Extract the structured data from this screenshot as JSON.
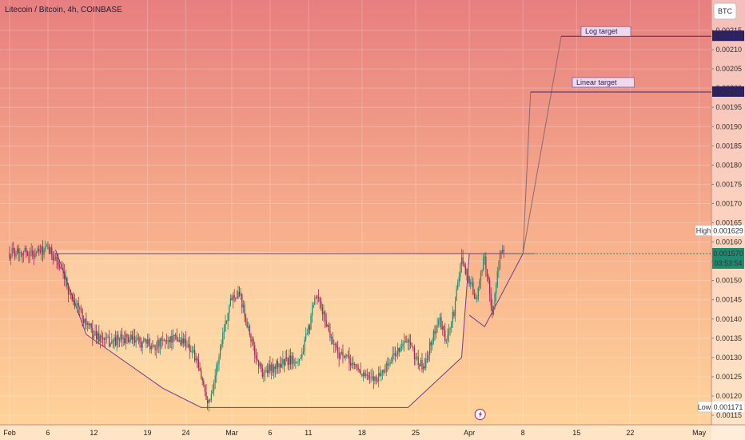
{
  "chart_data": {
    "type": "candlestick",
    "title": "Litecoin / Bitcoin, 4h, COINBASE",
    "currency": "BTC",
    "x_ticks": [
      "Feb",
      "6",
      "12",
      "19",
      "24",
      "Mar",
      "6",
      "11",
      "18",
      "25",
      "Apr",
      "8",
      "15",
      "22",
      "May"
    ],
    "y_ticks": [
      "0.00215",
      "0.00210",
      "0.00205",
      "0.00200",
      "0.00195",
      "0.00190",
      "0.00185",
      "0.00180",
      "0.00175",
      "0.00170",
      "0.00165",
      "0.00160",
      "0.00155",
      "0.00150",
      "0.00145",
      "0.00140",
      "0.00135",
      "0.00130",
      "0.00125",
      "0.00120",
      "0.00115"
    ],
    "y_range": [
      0.00115,
      0.00215
    ],
    "high_label": "High",
    "high_value": "0.001629",
    "low_label": "Low",
    "low_value": "0.001171",
    "current_price": "0.001570",
    "countdown": "03:53:54",
    "log_target": {
      "label": "Log target",
      "value": "0.002135"
    },
    "linear_target": {
      "label": "Linear target",
      "value": "0.001990"
    },
    "neckline": 0.00157,
    "price_path": [
      [
        "Feb 1",
        0.00157
      ],
      [
        "Feb 2",
        0.00158
      ],
      [
        "Feb 4",
        0.00157
      ],
      [
        "Feb 6",
        0.00158
      ],
      [
        "Feb 7",
        0.00156
      ],
      [
        "Feb 8",
        0.00151
      ],
      [
        "Feb 9",
        0.00146
      ],
      [
        "Feb 10",
        0.00143
      ],
      [
        "Feb 11",
        0.00139
      ],
      [
        "Feb 12",
        0.00136
      ],
      [
        "Feb 14",
        0.00134
      ],
      [
        "Feb 16",
        0.00135
      ],
      [
        "Feb 18",
        0.00134
      ],
      [
        "Feb 20",
        0.00133
      ],
      [
        "Feb 22",
        0.00135
      ],
      [
        "Feb 24",
        0.00134
      ],
      [
        "Feb 25",
        0.00131
      ],
      [
        "Feb 26",
        0.00125
      ],
      [
        "Feb 27",
        0.00118
      ],
      [
        "Feb 28",
        0.00127
      ],
      [
        "Feb 29",
        0.00138
      ],
      [
        "Mar 1",
        0.00146
      ],
      [
        "Mar 2",
        0.00147
      ],
      [
        "Mar 3",
        0.00139
      ],
      [
        "Mar 4",
        0.00131
      ],
      [
        "Mar 5",
        0.00126
      ],
      [
        "Mar 6",
        0.00127
      ],
      [
        "Mar 8",
        0.00129
      ],
      [
        "Mar 10",
        0.0013
      ],
      [
        "Mar 11",
        0.00137
      ],
      [
        "Mar 12",
        0.00146
      ],
      [
        "Mar 13",
        0.00141
      ],
      [
        "Mar 14",
        0.00135
      ],
      [
        "Mar 15",
        0.00131
      ],
      [
        "Mar 17",
        0.00128
      ],
      [
        "Mar 18",
        0.00126
      ],
      [
        "Mar 19",
        0.00124
      ],
      [
        "Mar 20",
        0.00125
      ],
      [
        "Mar 21",
        0.00127
      ],
      [
        "Mar 22",
        0.0013
      ],
      [
        "Mar 23",
        0.00133
      ],
      [
        "Mar 24",
        0.00134
      ],
      [
        "Mar 25",
        0.0013
      ],
      [
        "Mar 26",
        0.00127
      ],
      [
        "Mar 27",
        0.00134
      ],
      [
        "Mar 28",
        0.0014
      ],
      [
        "Mar 29",
        0.00134
      ],
      [
        "Mar 30",
        0.00142
      ],
      [
        "Mar 31",
        0.00156
      ],
      [
        "Apr 1",
        0.0015
      ],
      [
        "Apr 2",
        0.00145
      ],
      [
        "Apr 3",
        0.00157
      ],
      [
        "Apr 4",
        0.00141
      ],
      [
        "Apr 5",
        0.00157
      ]
    ],
    "cup_outline": [
      [
        "Feb 7",
        0.00158
      ],
      [
        "Feb 11",
        0.00136
      ],
      [
        "Feb 21",
        0.00122
      ],
      [
        "Feb 26",
        0.00117
      ],
      [
        "Mar 24",
        0.00117
      ],
      [
        "Mar 31",
        0.0013
      ],
      [
        "Apr 1",
        0.00157
      ]
    ],
    "handle_outline": [
      [
        "Apr 1",
        0.00141
      ],
      [
        "Apr 3",
        0.00138
      ],
      [
        "Apr 8",
        0.00157
      ]
    ],
    "projection": [
      [
        "Apr 8",
        0.00157
      ],
      [
        "Apr 9",
        0.00199
      ],
      [
        "Apr 13",
        0.002135
      ]
    ],
    "colors": {
      "up": "#1f8a70",
      "down": "#a3265a",
      "line": "#6a3d8f",
      "current": "#1f8a70",
      "bg_top": "#e88d8a",
      "bg_bottom": "#ffd49a"
    }
  }
}
